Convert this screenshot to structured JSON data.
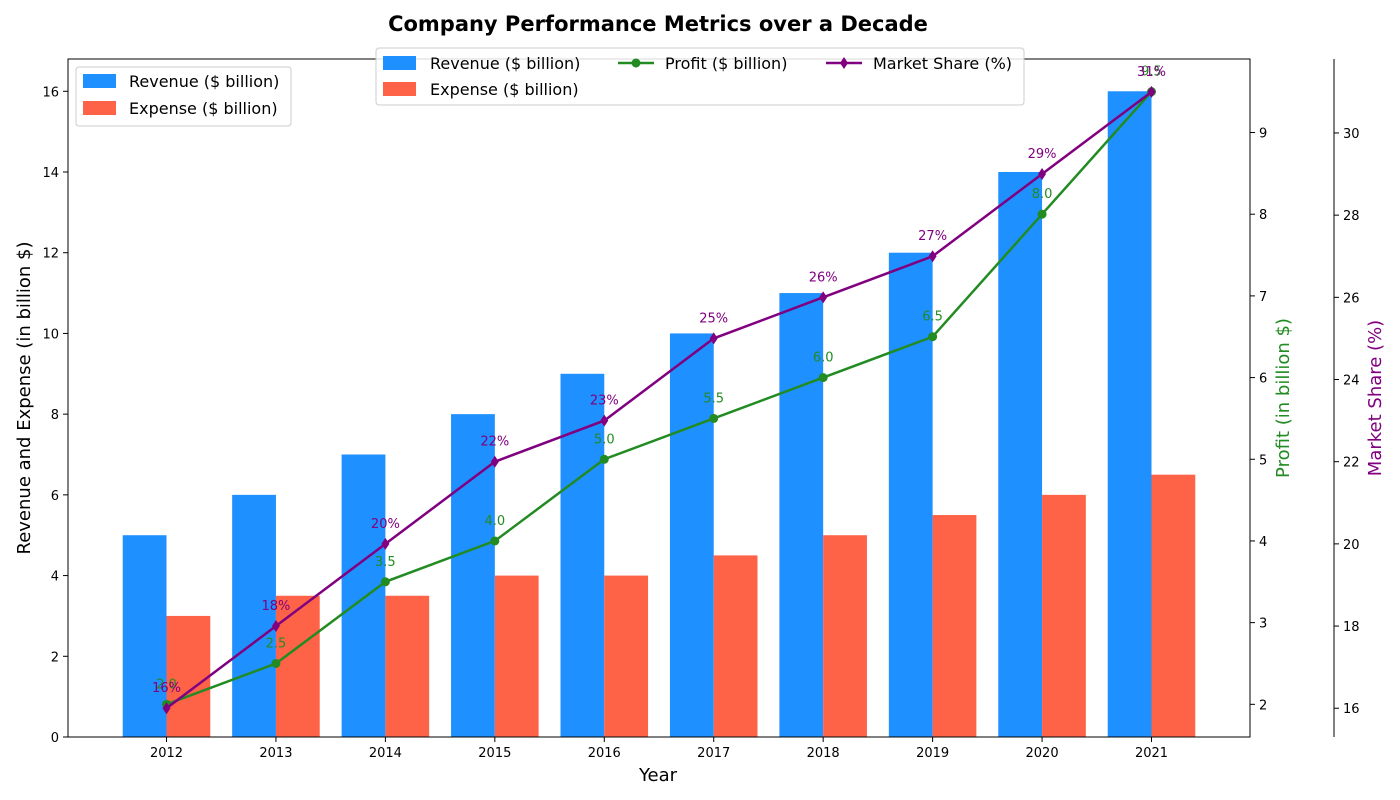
{
  "chart_data": {
    "type": "bar",
    "title": "Company Performance Metrics over a Decade",
    "xlabel": "Year",
    "categories": [
      "2012",
      "2013",
      "2014",
      "2015",
      "2016",
      "2017",
      "2018",
      "2019",
      "2020",
      "2021"
    ],
    "axes": {
      "left": {
        "label": "Revenue and Expense (in billion $)",
        "ylim": [
          0,
          16.8
        ],
        "ticks": [
          0,
          2,
          4,
          6,
          8,
          10,
          12,
          14,
          16
        ]
      },
      "right1": {
        "label": "Profit (in billion $)",
        "ylim": [
          1.6,
          9.9
        ],
        "ticks": [
          2,
          3,
          4,
          5,
          6,
          7,
          8,
          9
        ],
        "color": "#228B22"
      },
      "right2": {
        "label": "Market Share (%)",
        "ylim": [
          15.3,
          31.8
        ],
        "ticks": [
          16,
          18,
          20,
          22,
          24,
          26,
          28,
          30
        ],
        "color": "#800080"
      }
    },
    "series": [
      {
        "name": "Revenue ($ billion)",
        "kind": "bar",
        "axis": "left",
        "color": "#1E90FF",
        "values": [
          5,
          6,
          7,
          8,
          9,
          10,
          11,
          12,
          14,
          16
        ]
      },
      {
        "name": "Expense ($ billion)",
        "kind": "bar",
        "axis": "left",
        "color": "#FF6347",
        "values": [
          3,
          3.5,
          3.5,
          4,
          4,
          4.5,
          5,
          5.5,
          6,
          6.5
        ]
      },
      {
        "name": "Profit ($ billion)",
        "kind": "line",
        "axis": "right1",
        "color": "#228B22",
        "marker": "circle",
        "values": [
          2,
          2.5,
          3.5,
          4,
          5,
          5.5,
          6,
          6.5,
          8,
          9.5
        ],
        "labels": [
          "2.0",
          "2.5",
          "3.5",
          "4.0",
          "5.0",
          "5.5",
          "6.0",
          "6.5",
          "8.0",
          "9.5"
        ]
      },
      {
        "name": "Market Share (%)",
        "kind": "line",
        "axis": "right2",
        "color": "#800080",
        "marker": "diamond",
        "values": [
          16,
          18,
          20,
          22,
          23,
          25,
          26,
          27,
          29,
          31
        ],
        "labels": [
          "16%",
          "18%",
          "20%",
          "22%",
          "23%",
          "25%",
          "26%",
          "27%",
          "29%",
          "31%"
        ]
      }
    ],
    "legends": [
      "top-left",
      "top-center"
    ]
  }
}
